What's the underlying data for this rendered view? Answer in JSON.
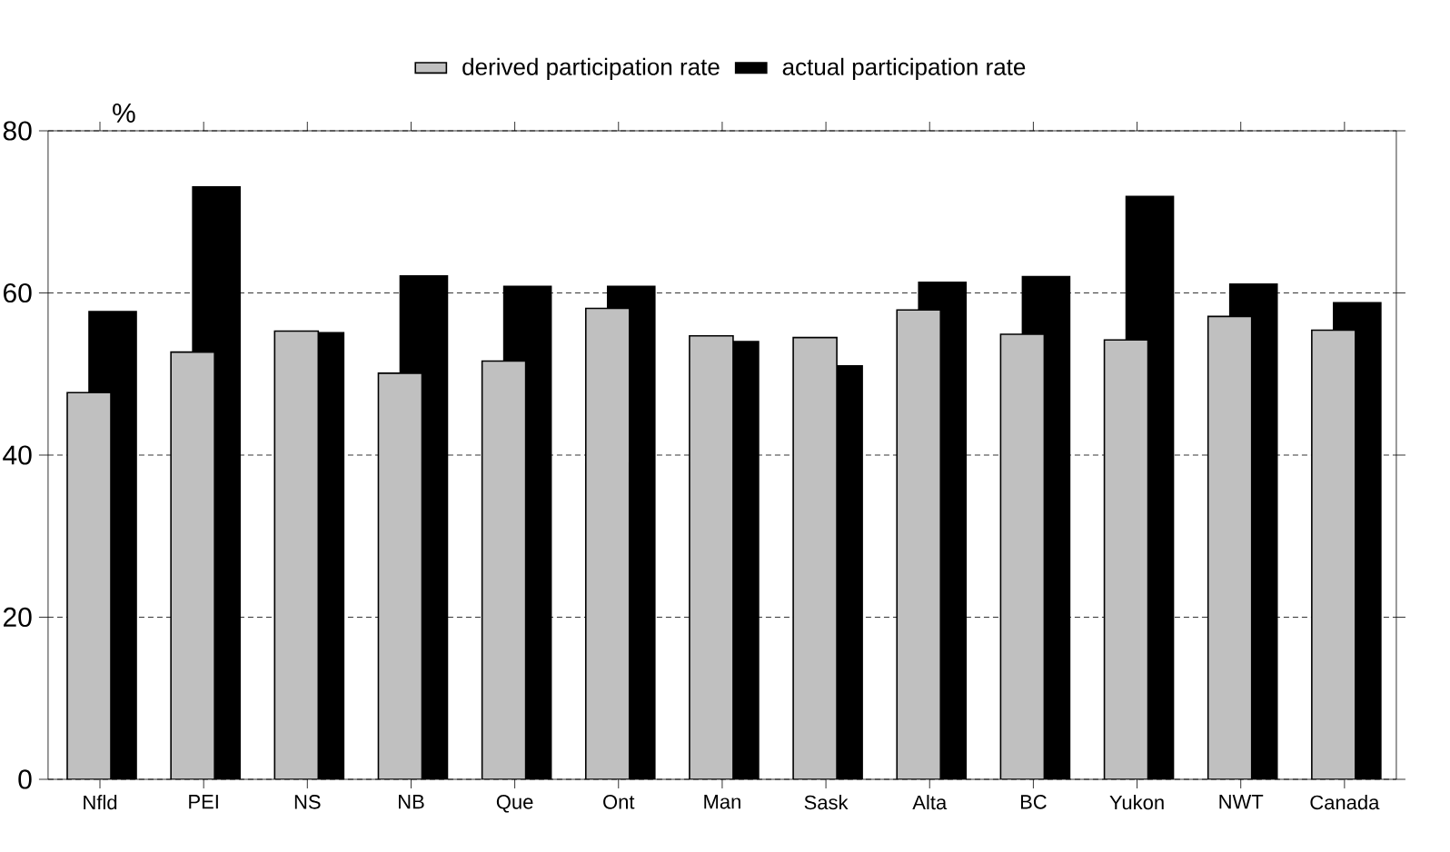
{
  "chart_data": {
    "type": "bar",
    "ylabel": "%",
    "categories": [
      "Nfld",
      "PEI",
      "NS",
      "NB",
      "Que",
      "Ont",
      "Man",
      "Sask",
      "Alta",
      "BC",
      "Yukon",
      "NWT",
      "Canada"
    ],
    "series": [
      {
        "name": "derived participation rate",
        "color": "#c0c0c0",
        "values": [
          47.7,
          52.7,
          55.3,
          50.1,
          51.6,
          58.1,
          54.7,
          54.5,
          57.9,
          54.9,
          54.2,
          57.1,
          55.4
        ]
      },
      {
        "name": "actual participation rate",
        "color": "#000000",
        "values": [
          57.7,
          73.1,
          55.1,
          62.1,
          60.8,
          60.8,
          54.0,
          51.0,
          61.3,
          62.0,
          71.9,
          61.1,
          58.8
        ]
      }
    ],
    "ylim": [
      0,
      80
    ],
    "yticks": [
      0,
      20,
      40,
      60,
      80
    ],
    "grid": "y",
    "legend": "top"
  }
}
